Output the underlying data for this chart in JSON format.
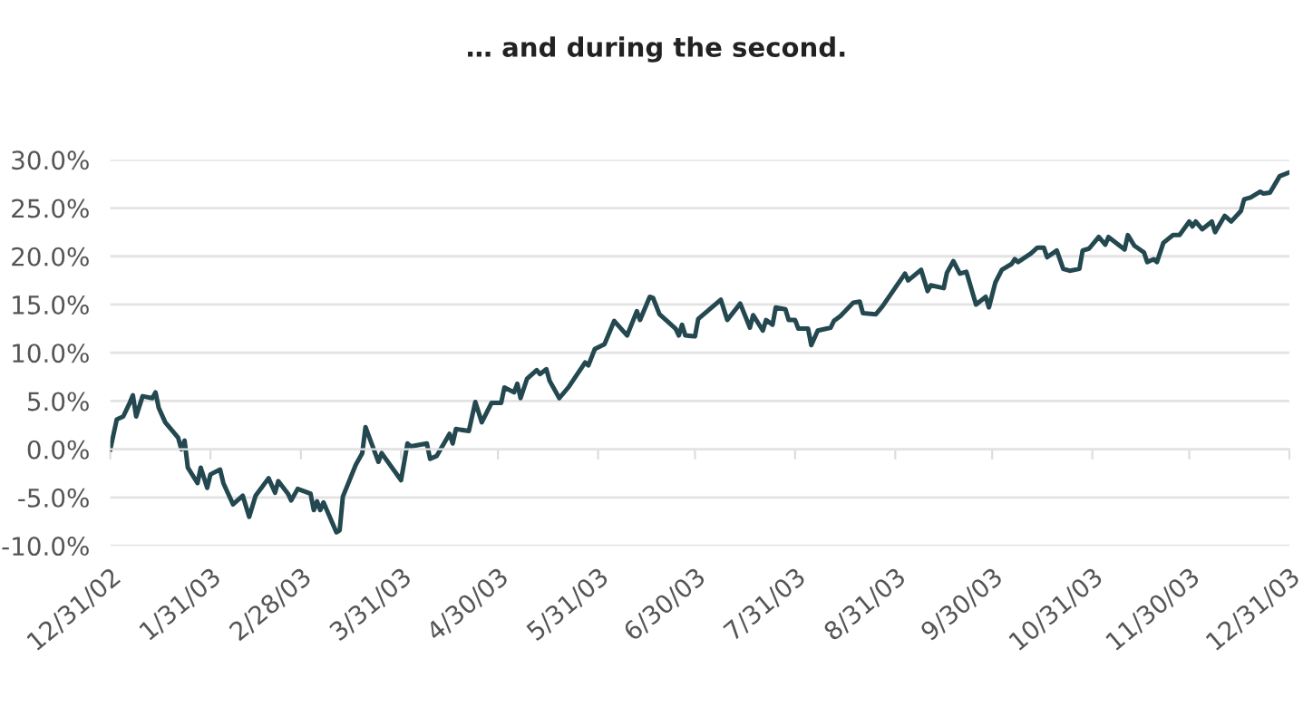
{
  "chart_data": {
    "type": "line",
    "title": "… and during the second.",
    "x": [
      "2002-12-31",
      "2003-01-02",
      "2003-01-04",
      "2003-01-06",
      "2003-01-07",
      "2003-01-08",
      "2003-01-10",
      "2003-01-13",
      "2003-01-14",
      "2003-01-15",
      "2003-01-17",
      "2003-01-21",
      "2003-01-22",
      "2003-01-23",
      "2003-01-24",
      "2003-01-27",
      "2003-01-28",
      "2003-01-30",
      "2003-01-31",
      "2003-02-03",
      "2003-02-04",
      "2003-02-07",
      "2003-02-10",
      "2003-02-12",
      "2003-02-14",
      "2003-02-18",
      "2003-02-20",
      "2003-02-21",
      "2003-02-24",
      "2003-02-25",
      "2003-02-27",
      "2003-03-03",
      "2003-03-04",
      "2003-03-05",
      "2003-03-06",
      "2003-03-07",
      "2003-03-11",
      "2003-03-12",
      "2003-03-13",
      "2003-03-17",
      "2003-03-19",
      "2003-03-20",
      "2003-03-24",
      "2003-03-25",
      "2003-03-31",
      "2003-04-02",
      "2003-04-03",
      "2003-04-08",
      "2003-04-09",
      "2003-04-11",
      "2003-04-15",
      "2003-04-16",
      "2003-04-17",
      "2003-04-21",
      "2003-04-23",
      "2003-04-25",
      "2003-04-28",
      "2003-05-01",
      "2003-05-02",
      "2003-05-05",
      "2003-05-06",
      "2003-05-07",
      "2003-05-09",
      "2003-05-12",
      "2003-05-13",
      "2003-05-15",
      "2003-05-16",
      "2003-05-19",
      "2003-05-22",
      "2003-05-27",
      "2003-05-28",
      "2003-05-30",
      "2003-06-02",
      "2003-06-05",
      "2003-06-09",
      "2003-06-12",
      "2003-06-13",
      "2003-06-16",
      "2003-06-17",
      "2003-06-19",
      "2003-06-24",
      "2003-06-25",
      "2003-06-26",
      "2003-06-27",
      "2003-06-30",
      "2003-07-01",
      "2003-07-08",
      "2003-07-10",
      "2003-07-14",
      "2003-07-17",
      "2003-07-18",
      "2003-07-21",
      "2003-07-22",
      "2003-07-24",
      "2003-07-25",
      "2003-07-28",
      "2003-07-29",
      "2003-07-31",
      "2003-08-01",
      "2003-08-04",
      "2003-08-05",
      "2003-08-07",
      "2003-08-11",
      "2003-08-12",
      "2003-08-14",
      "2003-08-18",
      "2003-08-20",
      "2003-08-21",
      "2003-08-25",
      "2003-08-27",
      "2003-09-03",
      "2003-09-04",
      "2003-09-08",
      "2003-09-10",
      "2003-09-11",
      "2003-09-15",
      "2003-09-16",
      "2003-09-18",
      "2003-09-20",
      "2003-09-22",
      "2003-09-25",
      "2003-09-28",
      "2003-09-29",
      "2003-10-01",
      "2003-10-03",
      "2003-10-06",
      "2003-10-07",
      "2003-10-08",
      "2003-10-12",
      "2003-10-14",
      "2003-10-16",
      "2003-10-17",
      "2003-10-20",
      "2003-10-22",
      "2003-10-24",
      "2003-10-27",
      "2003-10-28",
      "2003-10-30",
      "2003-11-02",
      "2003-11-04",
      "2003-11-05",
      "2003-11-10",
      "2003-11-11",
      "2003-11-13",
      "2003-11-16",
      "2003-11-17",
      "2003-11-19",
      "2003-11-20",
      "2003-11-22",
      "2003-11-25",
      "2003-11-27",
      "2003-11-30",
      "2003-12-01",
      "2003-12-02",
      "2003-12-04",
      "2003-12-07",
      "2003-12-08",
      "2003-12-11",
      "2003-12-13",
      "2003-12-16",
      "2003-12-17",
      "2003-12-19",
      "2003-12-22",
      "2003-12-23",
      "2003-12-25",
      "2003-12-28",
      "2003-12-31"
    ],
    "series": [
      {
        "color": "#244850",
        "values": [
          0.0,
          3.1,
          3.4,
          4.8,
          5.6,
          3.4,
          5.5,
          5.3,
          5.9,
          4.3,
          2.8,
          1.2,
          0.0,
          0.9,
          -1.9,
          -3.5,
          -1.9,
          -4.0,
          -2.6,
          -2.1,
          -3.5,
          -5.7,
          -4.8,
          -7.0,
          -4.8,
          -3.0,
          -4.5,
          -3.3,
          -4.6,
          -5.3,
          -4.1,
          -4.6,
          -6.3,
          -5.4,
          -6.3,
          -5.5,
          -8.6,
          -8.4,
          -4.9,
          -1.6,
          -0.4,
          2.3,
          -1.3,
          -0.4,
          -3.2,
          0.6,
          0.3,
          0.6,
          -1.0,
          -0.7,
          1.6,
          0.6,
          2.1,
          1.9,
          4.9,
          2.8,
          4.8,
          4.8,
          6.4,
          5.9,
          6.8,
          5.3,
          7.3,
          8.2,
          7.8,
          8.3,
          7.1,
          5.3,
          6.5,
          9.0,
          8.7,
          10.4,
          10.9,
          13.3,
          11.8,
          14.3,
          13.4,
          15.8,
          15.7,
          14.0,
          12.5,
          11.8,
          12.9,
          11.8,
          11.7,
          13.5,
          15.5,
          13.4,
          15.1,
          12.6,
          13.9,
          12.3,
          13.4,
          12.9,
          14.7,
          14.5,
          13.4,
          13.4,
          12.5,
          12.5,
          10.8,
          12.3,
          12.6,
          13.3,
          13.8,
          15.2,
          15.3,
          14.1,
          14.0,
          14.8,
          18.2,
          17.5,
          18.6,
          16.4,
          17.0,
          16.7,
          18.3,
          19.5,
          18.2,
          18.4,
          15.0,
          15.8,
          14.7,
          17.3,
          18.6,
          19.2,
          19.7,
          19.4,
          20.3,
          20.9,
          20.9,
          19.9,
          20.6,
          18.7,
          18.5,
          18.7,
          20.6,
          20.8,
          22.0,
          21.2,
          22.0,
          20.7,
          22.2,
          21.1,
          20.4,
          19.4,
          19.7,
          19.4,
          21.4,
          22.2,
          22.2,
          23.6,
          23.1,
          23.6,
          22.8,
          23.6,
          22.5,
          24.2,
          23.6,
          24.7,
          25.9,
          26.1,
          26.7,
          26.5,
          26.6,
          28.3,
          28.7
        ]
      }
    ],
    "xlim": [
      "2002-12-31",
      "2003-12-31"
    ],
    "xticks": [
      {
        "value": "2002-12-31",
        "label": "12/31/02"
      },
      {
        "value": "2003-01-31",
        "label": "1/31/03"
      },
      {
        "value": "2003-02-28",
        "label": "2/28/03"
      },
      {
        "value": "2003-03-31",
        "label": "3/31/03"
      },
      {
        "value": "2003-04-30",
        "label": "4/30/03"
      },
      {
        "value": "2003-05-31",
        "label": "5/31/03"
      },
      {
        "value": "2003-06-30",
        "label": "6/30/03"
      },
      {
        "value": "2003-07-31",
        "label": "7/31/03"
      },
      {
        "value": "2003-08-31",
        "label": "8/31/03"
      },
      {
        "value": "2003-09-30",
        "label": "9/30/03"
      },
      {
        "value": "2003-10-31",
        "label": "10/31/03"
      },
      {
        "value": "2003-11-30",
        "label": "11/30/03"
      },
      {
        "value": "2003-12-31",
        "label": "12/31/03"
      }
    ],
    "ylim": [
      -10,
      30
    ],
    "yticks": [
      {
        "value": -10,
        "label": "-10.0%"
      },
      {
        "value": -5,
        "label": "-5.0%"
      },
      {
        "value": 0,
        "label": "0.0%"
      },
      {
        "value": 5,
        "label": "5.0%"
      },
      {
        "value": 10,
        "label": "10.0%"
      },
      {
        "value": 15,
        "label": "15.0%"
      },
      {
        "value": 20,
        "label": "20.0%"
      },
      {
        "value": 25,
        "label": "25.0%"
      },
      {
        "value": 30,
        "label": "30.0%"
      }
    ],
    "grid": "y",
    "marker": "none",
    "line_style": "solid"
  }
}
